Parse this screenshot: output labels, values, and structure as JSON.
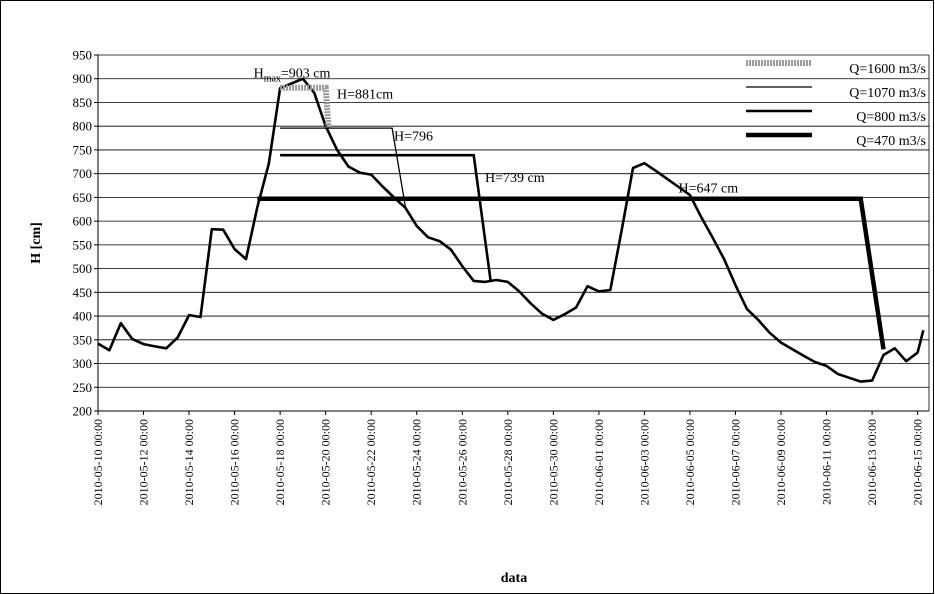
{
  "chart_data": {
    "type": "line",
    "xlabel": "data",
    "ylabel": "H [cm]",
    "ylim": [
      200,
      950
    ],
    "ytick_step": 50,
    "xlim": [
      "2010-05-10 00:00",
      "2010-06-15 12:00"
    ],
    "x_tick_labels": [
      "2010-05-10 00:00",
      "2010-05-12 00:00",
      "2010-05-14 00:00",
      "2010-05-16 00:00",
      "2010-05-18 00:00",
      "2010-05-20 00:00",
      "2010-05-22 00:00",
      "2010-05-24 00:00",
      "2010-05-26 00:00",
      "2010-05-28 00:00",
      "2010-05-30 00:00",
      "2010-06-01 00:00",
      "2010-06-03 00:00",
      "2010-06-05 00:00",
      "2010-06-07 00:00",
      "2010-06-09 00:00",
      "2010-06-11 00:00",
      "2010-06-13 00:00",
      "2010-06-15 00:00"
    ],
    "grid": "horizontal",
    "legend_position": "top-right",
    "hydrograph": {
      "x": [
        "2010-05-10 00:00",
        "2010-05-10 12:00",
        "2010-05-11 00:00",
        "2010-05-11 12:00",
        "2010-05-12 00:00",
        "2010-05-12 12:00",
        "2010-05-13 00:00",
        "2010-05-13 12:00",
        "2010-05-14 00:00",
        "2010-05-14 12:00",
        "2010-05-15 00:00",
        "2010-05-15 12:00",
        "2010-05-16 00:00",
        "2010-05-16 12:00",
        "2010-05-17 00:00",
        "2010-05-17 12:00",
        "2010-05-18 00:00",
        "2010-05-18 12:00",
        "2010-05-19 00:00",
        "2010-05-19 12:00",
        "2010-05-20 00:00",
        "2010-05-20 12:00",
        "2010-05-21 00:00",
        "2010-05-21 12:00",
        "2010-05-22 00:00",
        "2010-05-22 12:00",
        "2010-05-23 00:00",
        "2010-05-23 12:00",
        "2010-05-24 00:00",
        "2010-05-24 12:00",
        "2010-05-25 00:00",
        "2010-05-25 12:00",
        "2010-05-26 00:00",
        "2010-05-26 12:00",
        "2010-05-27 00:00",
        "2010-05-27 12:00",
        "2010-05-28 00:00",
        "2010-05-28 12:00",
        "2010-05-29 00:00",
        "2010-05-29 12:00",
        "2010-05-30 00:00",
        "2010-05-30 12:00",
        "2010-05-31 00:00",
        "2010-05-31 12:00",
        "2010-06-01 00:00",
        "2010-06-01 12:00",
        "2010-06-02 00:00",
        "2010-06-02 12:00",
        "2010-06-03 00:00",
        "2010-06-03 12:00",
        "2010-06-04 00:00",
        "2010-06-04 12:00",
        "2010-06-05 00:00",
        "2010-06-05 12:00",
        "2010-06-06 00:00",
        "2010-06-06 12:00",
        "2010-06-07 00:00",
        "2010-06-07 12:00",
        "2010-06-08 00:00",
        "2010-06-08 12:00",
        "2010-06-09 00:00",
        "2010-06-09 12:00",
        "2010-06-10 00:00",
        "2010-06-10 12:00",
        "2010-06-11 00:00",
        "2010-06-11 12:00",
        "2010-06-12 00:00",
        "2010-06-12 12:00",
        "2010-06-13 00:00",
        "2010-06-13 12:00",
        "2010-06-14 00:00",
        "2010-06-14 12:00",
        "2010-06-15 00:00",
        "2010-06-15 06:00"
      ],
      "y": [
        342,
        328,
        385,
        352,
        341,
        336,
        332,
        355,
        402,
        398,
        583,
        582,
        541,
        520,
        630,
        721,
        880,
        890,
        900,
        870,
        800,
        750,
        715,
        702,
        698,
        673,
        650,
        628,
        590,
        566,
        558,
        540,
        505,
        474,
        472,
        476,
        472,
        452,
        427,
        405,
        392,
        404,
        418,
        463,
        452,
        455,
        580,
        712,
        722,
        706,
        689,
        672,
        655,
        608,
        565,
        520,
        465,
        415,
        392,
        365,
        344,
        330,
        316,
        303,
        295,
        278,
        270,
        262,
        264,
        318,
        332,
        305,
        323,
        370
      ]
    },
    "series": [
      {
        "name": "Q=1600 m3/s",
        "x": [
          "2010-05-18 00:00",
          "2010-05-20 00:00",
          "2010-05-20 03:00"
        ],
        "y": [
          881,
          881,
          795
        ]
      },
      {
        "name": "Q=1070 m3/s",
        "x": [
          "2010-05-18 00:00",
          "2010-05-22 22:00",
          "2010-05-23 12:00"
        ],
        "y": [
          796,
          796,
          630
        ]
      },
      {
        "name": "Q=800 m3/s",
        "x": [
          "2010-05-18 00:00",
          "2010-05-26 12:00",
          "2010-05-27 06:00"
        ],
        "y": [
          739,
          739,
          473
        ]
      },
      {
        "name": "Q=470 m3/s",
        "x": [
          "2010-05-17 00:00",
          "2010-06-12 12:00",
          "2010-06-13 12:00"
        ],
        "y": [
          647,
          647,
          330
        ]
      }
    ],
    "annotations": [
      {
        "text_main": "H",
        "text_sub": "max",
        "text_tail": "=903 cm",
        "x": "2010-05-16 20:00",
        "y": 903
      },
      {
        "text": "H=881cm",
        "x": "2010-05-20 12:00",
        "y": 858
      },
      {
        "text": "H=796",
        "x": "2010-05-23 00:00",
        "y": 770
      },
      {
        "text": "H=739 cm",
        "x": "2010-05-27 00:00",
        "y": 682
      },
      {
        "text": "H=647 cm",
        "x": "2010-06-04 12:00",
        "y": 660
      }
    ]
  }
}
